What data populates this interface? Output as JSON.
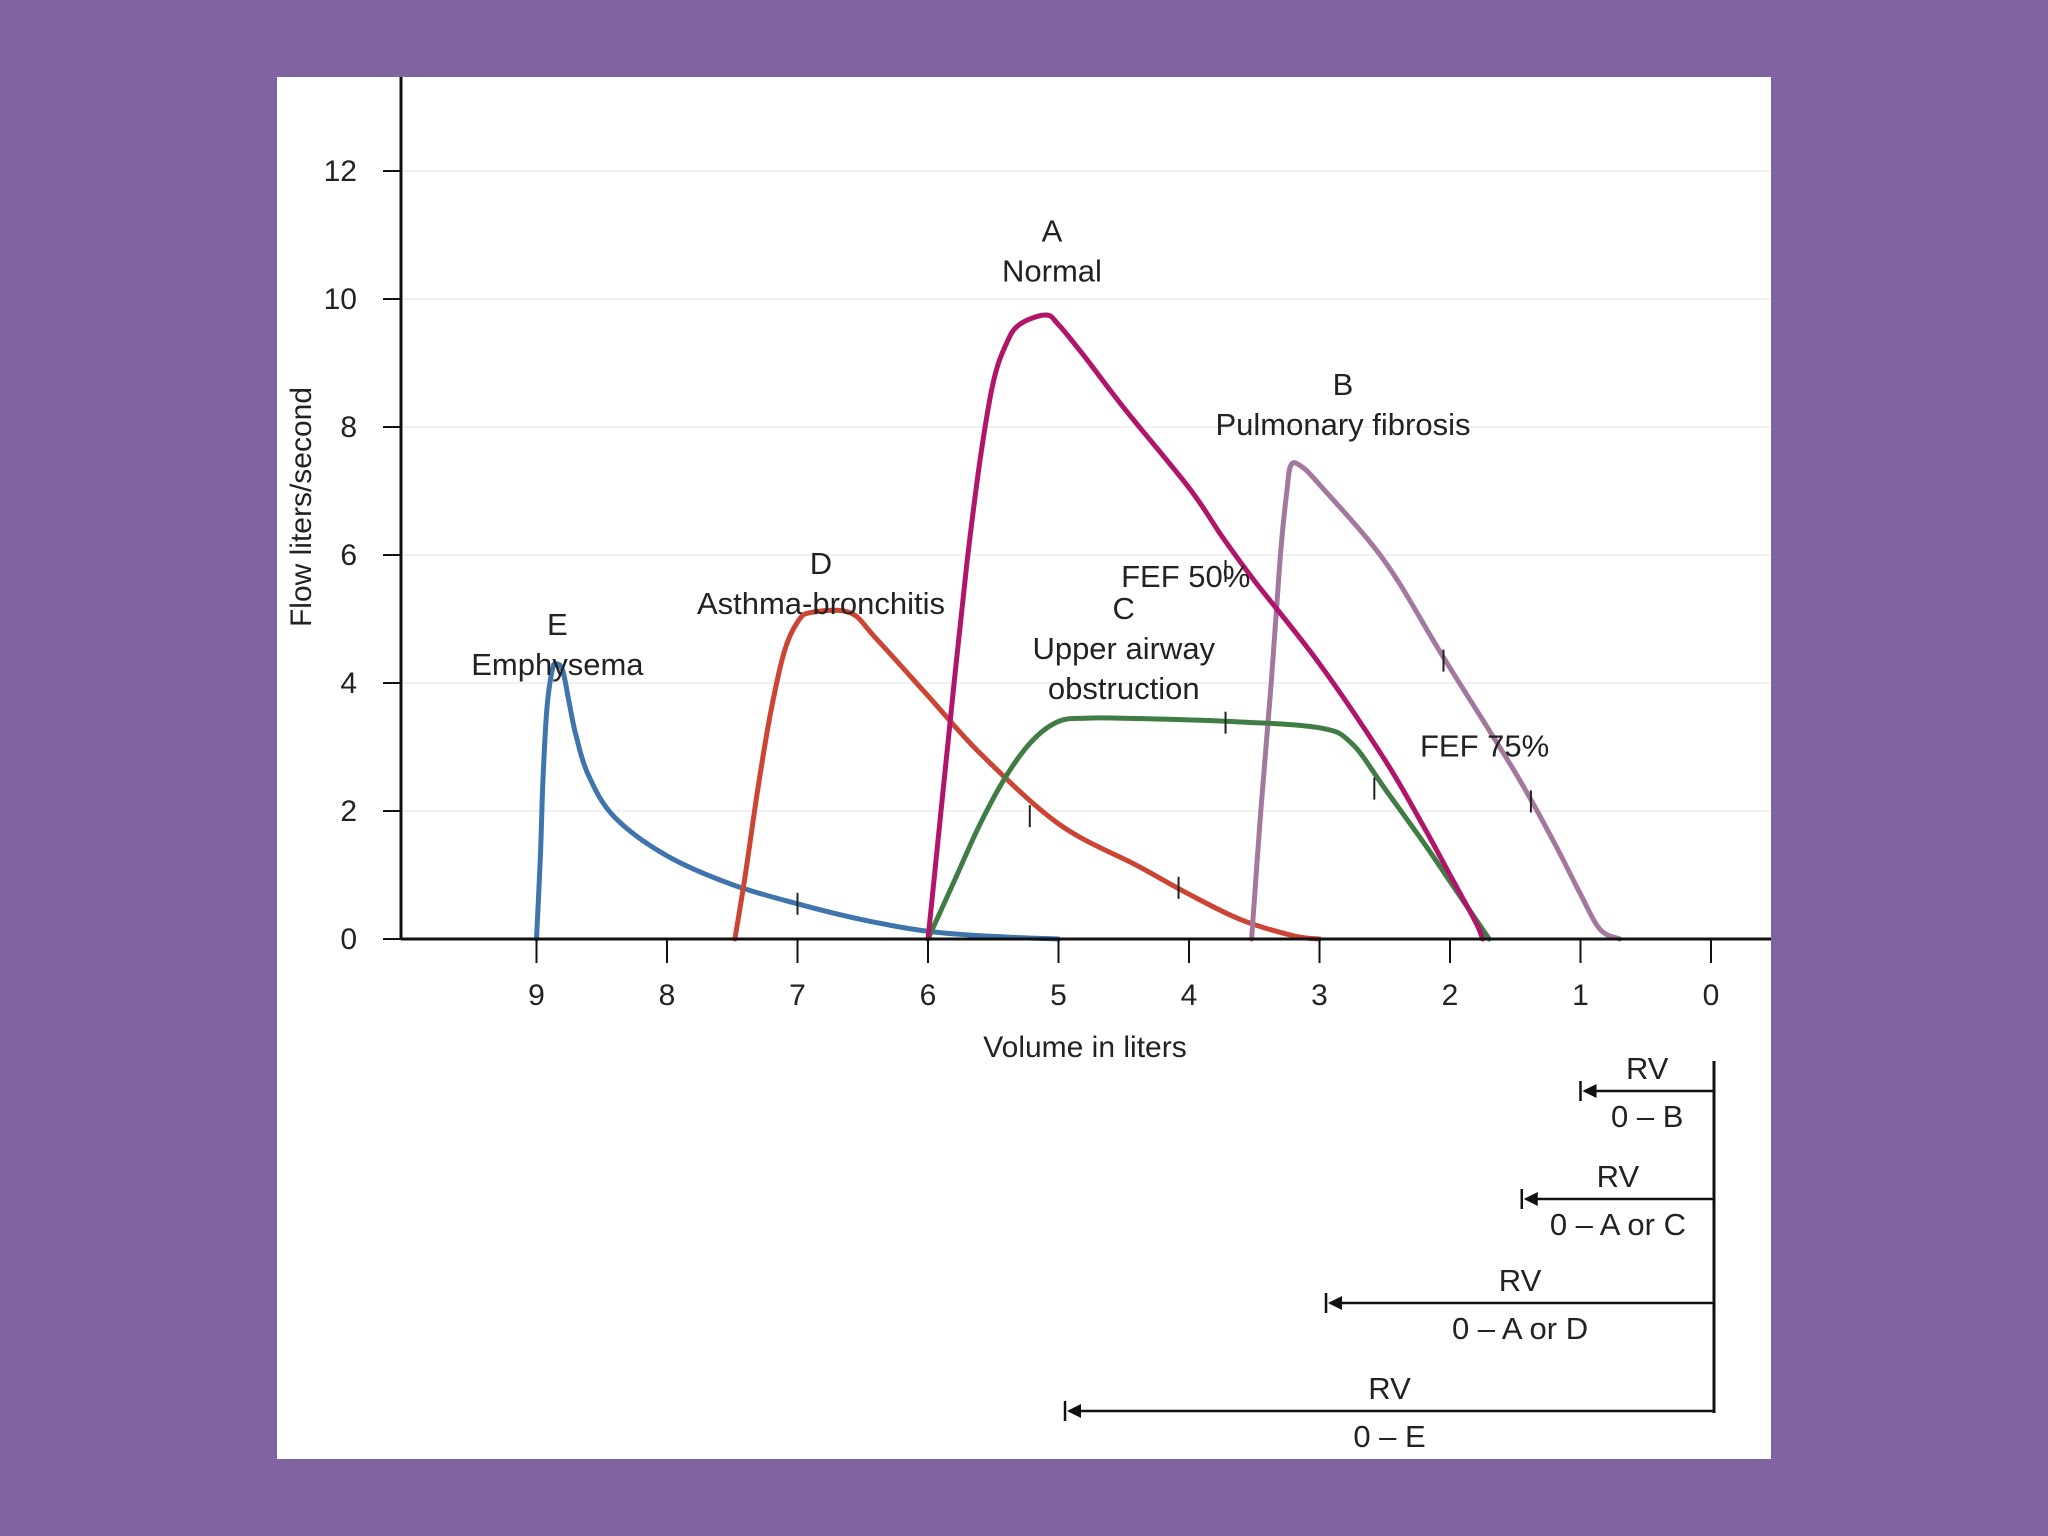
{
  "colors": {
    "background": "#8064a2",
    "panel": "#ffffff",
    "grid": "#ececf2",
    "axis": "#111111",
    "normal": "#b0156a",
    "pulmonary_fibrosis": "#a2789e",
    "upper_airway": "#3f7d45",
    "asthma": "#cc4434",
    "emphysema": "#3f74ad"
  },
  "chart_data": {
    "type": "line",
    "title": "",
    "xlabel": "Volume in liters",
    "ylabel": "Flow liters/second",
    "xlim": [
      10,
      0
    ],
    "ylim": [
      0,
      13
    ],
    "x_reversed": true,
    "x_ticks": [
      "9",
      "8",
      "7",
      "6",
      "5",
      "4",
      "3",
      "2",
      "1",
      "0"
    ],
    "y_ticks": [
      "0",
      "2",
      "4",
      "6",
      "8",
      "10",
      "12"
    ],
    "grid": "horizontal",
    "series": [
      {
        "key": "A",
        "name": "Normal",
        "letter": "A",
        "color_key": "normal",
        "points": [
          [
            6.0,
            0
          ],
          [
            5.9,
            2.0
          ],
          [
            5.8,
            4.0
          ],
          [
            5.7,
            5.9
          ],
          [
            5.6,
            7.5
          ],
          [
            5.5,
            8.7
          ],
          [
            5.4,
            9.3
          ],
          [
            5.3,
            9.6
          ],
          [
            5.1,
            9.75
          ],
          [
            5.0,
            9.6
          ],
          [
            4.8,
            9.1
          ],
          [
            4.5,
            8.3
          ],
          [
            4.0,
            7.05
          ],
          [
            3.75,
            6.3
          ],
          [
            3.5,
            5.6
          ],
          [
            3.0,
            4.3
          ],
          [
            2.5,
            2.8
          ],
          [
            2.2,
            1.75
          ],
          [
            2.0,
            1.0
          ],
          [
            1.8,
            0.25
          ],
          [
            1.75,
            0
          ]
        ],
        "fef": [
          [
            3.72,
            5.75
          ]
        ],
        "label_pos": [
          5.05,
          10.9
        ]
      },
      {
        "key": "B",
        "name": "Pulmonary fibrosis",
        "letter": "B",
        "color_key": "pulmonary_fibrosis",
        "points": [
          [
            3.52,
            0
          ],
          [
            3.45,
            2.0
          ],
          [
            3.37,
            4.0
          ],
          [
            3.3,
            6.0
          ],
          [
            3.25,
            7.0
          ],
          [
            3.22,
            7.4
          ],
          [
            3.15,
            7.4
          ],
          [
            3.0,
            7.1
          ],
          [
            2.5,
            5.9
          ],
          [
            2.05,
            4.4
          ],
          [
            1.5,
            2.6
          ],
          [
            1.2,
            1.5
          ],
          [
            1.0,
            0.7
          ],
          [
            0.85,
            0.15
          ],
          [
            0.7,
            0
          ]
        ],
        "fef": [
          [
            2.05,
            4.35
          ],
          [
            1.38,
            2.15
          ]
        ],
        "label_pos": [
          2.82,
          8.5
        ]
      },
      {
        "key": "C",
        "name": "Upper airway obstruction",
        "letter": "C",
        "color_key": "upper_airway",
        "points": [
          [
            6.0,
            0
          ],
          [
            5.8,
            0.9
          ],
          [
            5.6,
            1.8
          ],
          [
            5.4,
            2.55
          ],
          [
            5.2,
            3.1
          ],
          [
            5.0,
            3.4
          ],
          [
            4.8,
            3.45
          ],
          [
            4.5,
            3.45
          ],
          [
            3.7,
            3.4
          ],
          [
            3.0,
            3.3
          ],
          [
            2.75,
            3.05
          ],
          [
            2.5,
            2.35
          ],
          [
            2.2,
            1.5
          ],
          [
            2.0,
            0.9
          ],
          [
            1.8,
            0.3
          ],
          [
            1.7,
            0
          ]
        ],
        "fef": [
          [
            3.72,
            3.38
          ],
          [
            2.58,
            2.35
          ]
        ],
        "label_pos": [
          4.5,
          5.0
        ]
      },
      {
        "key": "D",
        "name": "Asthma-bronchitis",
        "letter": "D",
        "color_key": "asthma",
        "points": [
          [
            7.48,
            0
          ],
          [
            7.4,
            1.0
          ],
          [
            7.3,
            2.4
          ],
          [
            7.2,
            3.6
          ],
          [
            7.1,
            4.5
          ],
          [
            7.0,
            4.95
          ],
          [
            6.9,
            5.1
          ],
          [
            6.6,
            5.1
          ],
          [
            6.4,
            4.7
          ],
          [
            6.0,
            3.8
          ],
          [
            5.6,
            2.9
          ],
          [
            5.0,
            1.8
          ],
          [
            4.4,
            1.15
          ],
          [
            4.0,
            0.7
          ],
          [
            3.6,
            0.3
          ],
          [
            3.2,
            0.05
          ],
          [
            3.0,
            0
          ]
        ],
        "fef": [
          [
            5.22,
            1.92
          ],
          [
            4.08,
            0.8
          ]
        ],
        "label_pos": [
          6.82,
          5.7
        ]
      },
      {
        "key": "E",
        "name": "Emphysema",
        "letter": "E",
        "color_key": "emphysema",
        "points": [
          [
            9.0,
            0
          ],
          [
            8.97,
            1.3
          ],
          [
            8.95,
            2.5
          ],
          [
            8.92,
            3.6
          ],
          [
            8.88,
            4.2
          ],
          [
            8.85,
            4.3
          ],
          [
            8.8,
            4.2
          ],
          [
            8.75,
            3.7
          ],
          [
            8.7,
            3.2
          ],
          [
            8.6,
            2.55
          ],
          [
            8.4,
            1.9
          ],
          [
            8.0,
            1.3
          ],
          [
            7.5,
            0.85
          ],
          [
            7.0,
            0.55
          ],
          [
            6.5,
            0.3
          ],
          [
            6.0,
            0.12
          ],
          [
            5.5,
            0.04
          ],
          [
            5.0,
            0
          ]
        ],
        "fef": [
          [
            7.0,
            0.55
          ]
        ],
        "label_pos": [
          8.84,
          4.75
        ]
      }
    ],
    "annotations": [
      {
        "text": "FEF 50%",
        "x": 4.52,
        "y": 5.5
      },
      {
        "text": "FEF 75%",
        "x": 2.23,
        "y": 2.85
      }
    ],
    "rv_lines": [
      {
        "label": "RV",
        "sub": "0 – B",
        "to_x": 1.0
      },
      {
        "label": "RV",
        "sub": "0 – A or C",
        "to_x": 1.45
      },
      {
        "label": "RV",
        "sub": "0 – A or D",
        "to_x": 2.95
      },
      {
        "label": "RV",
        "sub": "0 – E",
        "to_x": 4.95
      }
    ]
  }
}
